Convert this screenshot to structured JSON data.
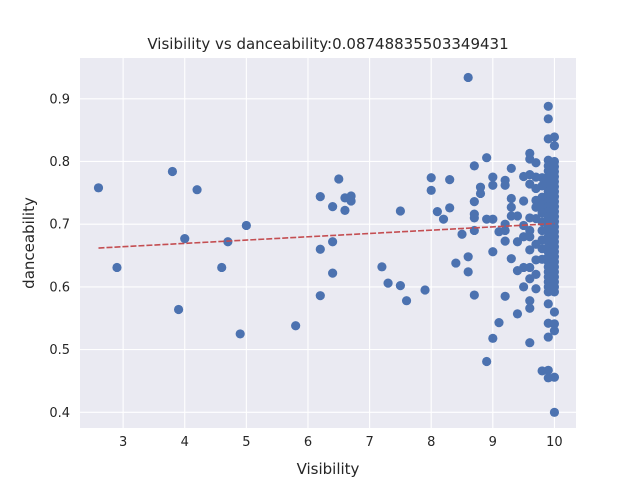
{
  "chart_data": {
    "type": "scatter",
    "title": "Visibility vs danceability:0.08748835503349431",
    "xlabel": "Visibility",
    "ylabel": "danceability",
    "xlim": [
      2.3,
      10.35
    ],
    "ylim": [
      0.375,
      0.965
    ],
    "xticks": [
      "3",
      "4",
      "5",
      "6",
      "7",
      "8",
      "9",
      "10"
    ],
    "yticks": [
      "0.4",
      "0.5",
      "0.6",
      "0.7",
      "0.8",
      "0.9"
    ],
    "grid": true,
    "background": "#eaeaf2",
    "point_color": "#4c72b0",
    "trend_color": "#c44e52",
    "trendline": {
      "x": [
        2.6,
        10.0
      ],
      "y": [
        0.662,
        0.701
      ]
    },
    "points": [
      [
        2.6,
        0.758
      ],
      [
        2.9,
        0.631
      ],
      [
        3.8,
        0.784
      ],
      [
        3.9,
        0.564
      ],
      [
        4.0,
        0.677
      ],
      [
        4.2,
        0.755
      ],
      [
        4.6,
        0.631
      ],
      [
        4.7,
        0.672
      ],
      [
        4.9,
        0.525
      ],
      [
        5.0,
        0.698
      ],
      [
        5.8,
        0.538
      ],
      [
        6.2,
        0.744
      ],
      [
        6.2,
        0.66
      ],
      [
        6.2,
        0.586
      ],
      [
        6.4,
        0.728
      ],
      [
        6.4,
        0.672
      ],
      [
        6.4,
        0.622
      ],
      [
        6.5,
        0.772
      ],
      [
        6.6,
        0.742
      ],
      [
        6.6,
        0.722
      ],
      [
        6.7,
        0.745
      ],
      [
        6.7,
        0.737
      ],
      [
        7.2,
        0.632
      ],
      [
        7.3,
        0.606
      ],
      [
        7.5,
        0.721
      ],
      [
        7.5,
        0.602
      ],
      [
        7.6,
        0.578
      ],
      [
        7.9,
        0.595
      ],
      [
        8.0,
        0.774
      ],
      [
        8.0,
        0.754
      ],
      [
        8.1,
        0.72
      ],
      [
        8.2,
        0.708
      ],
      [
        8.3,
        0.771
      ],
      [
        8.3,
        0.726
      ],
      [
        8.4,
        0.638
      ],
      [
        8.5,
        0.684
      ],
      [
        8.6,
        0.934
      ],
      [
        8.6,
        0.648
      ],
      [
        8.6,
        0.624
      ],
      [
        8.7,
        0.793
      ],
      [
        8.7,
        0.736
      ],
      [
        8.7,
        0.716
      ],
      [
        8.7,
        0.71
      ],
      [
        8.7,
        0.69
      ],
      [
        8.7,
        0.587
      ],
      [
        8.8,
        0.759
      ],
      [
        8.8,
        0.749
      ],
      [
        8.9,
        0.806
      ],
      [
        8.9,
        0.708
      ],
      [
        8.9,
        0.481
      ],
      [
        9.0,
        0.775
      ],
      [
        9.0,
        0.762
      ],
      [
        9.0,
        0.708
      ],
      [
        9.0,
        0.656
      ],
      [
        9.0,
        0.518
      ],
      [
        9.1,
        0.688
      ],
      [
        9.1,
        0.543
      ],
      [
        9.2,
        0.77
      ],
      [
        9.2,
        0.762
      ],
      [
        9.2,
        0.7
      ],
      [
        9.2,
        0.69
      ],
      [
        9.2,
        0.673
      ],
      [
        9.2,
        0.585
      ],
      [
        9.3,
        0.789
      ],
      [
        9.3,
        0.741
      ],
      [
        9.3,
        0.727
      ],
      [
        9.3,
        0.713
      ],
      [
        9.3,
        0.645
      ],
      [
        9.4,
        0.713
      ],
      [
        9.4,
        0.672
      ],
      [
        9.4,
        0.626
      ],
      [
        9.4,
        0.557
      ],
      [
        9.5,
        0.776
      ],
      [
        9.5,
        0.737
      ],
      [
        9.5,
        0.698
      ],
      [
        9.5,
        0.68
      ],
      [
        9.5,
        0.631
      ],
      [
        9.5,
        0.6
      ],
      [
        9.6,
        0.813
      ],
      [
        9.6,
        0.804
      ],
      [
        9.6,
        0.779
      ],
      [
        9.6,
        0.764
      ],
      [
        9.6,
        0.71
      ],
      [
        9.6,
        0.69
      ],
      [
        9.6,
        0.68
      ],
      [
        9.6,
        0.659
      ],
      [
        9.6,
        0.631
      ],
      [
        9.6,
        0.613
      ],
      [
        9.6,
        0.578
      ],
      [
        9.6,
        0.566
      ],
      [
        9.6,
        0.511
      ],
      [
        9.7,
        0.798
      ],
      [
        9.7,
        0.775
      ],
      [
        9.7,
        0.757
      ],
      [
        9.7,
        0.738
      ],
      [
        9.7,
        0.727
      ],
      [
        9.7,
        0.709
      ],
      [
        9.7,
        0.668
      ],
      [
        9.7,
        0.643
      ],
      [
        9.7,
        0.62
      ],
      [
        9.7,
        0.597
      ],
      [
        9.8,
        0.774
      ],
      [
        9.8,
        0.761
      ],
      [
        9.8,
        0.743
      ],
      [
        9.8,
        0.73
      ],
      [
        9.8,
        0.718
      ],
      [
        9.8,
        0.704
      ],
      [
        9.8,
        0.69
      ],
      [
        9.8,
        0.675
      ],
      [
        9.8,
        0.661
      ],
      [
        9.8,
        0.644
      ],
      [
        9.8,
        0.466
      ],
      [
        9.9,
        0.888
      ],
      [
        9.9,
        0.868
      ],
      [
        9.9,
        0.836
      ],
      [
        9.9,
        0.802
      ],
      [
        9.9,
        0.793
      ],
      [
        9.9,
        0.785
      ],
      [
        9.9,
        0.776
      ],
      [
        9.9,
        0.768
      ],
      [
        9.9,
        0.76
      ],
      [
        9.9,
        0.752
      ],
      [
        9.9,
        0.744
      ],
      [
        9.9,
        0.736
      ],
      [
        9.9,
        0.728
      ],
      [
        9.9,
        0.72
      ],
      [
        9.9,
        0.712
      ],
      [
        9.9,
        0.704
      ],
      [
        9.9,
        0.696
      ],
      [
        9.9,
        0.688
      ],
      [
        9.9,
        0.68
      ],
      [
        9.9,
        0.672
      ],
      [
        9.9,
        0.664
      ],
      [
        9.9,
        0.656
      ],
      [
        9.9,
        0.648
      ],
      [
        9.9,
        0.64
      ],
      [
        9.9,
        0.632
      ],
      [
        9.9,
        0.624
      ],
      [
        9.9,
        0.616
      ],
      [
        9.9,
        0.608
      ],
      [
        9.9,
        0.6
      ],
      [
        9.9,
        0.592
      ],
      [
        9.9,
        0.573
      ],
      [
        9.9,
        0.542
      ],
      [
        9.9,
        0.52
      ],
      [
        9.9,
        0.467
      ],
      [
        9.9,
        0.455
      ],
      [
        10.0,
        0.839
      ],
      [
        10.0,
        0.825
      ],
      [
        10.0,
        0.8
      ],
      [
        10.0,
        0.792
      ],
      [
        10.0,
        0.784
      ],
      [
        10.0,
        0.776
      ],
      [
        10.0,
        0.768
      ],
      [
        10.0,
        0.76
      ],
      [
        10.0,
        0.752
      ],
      [
        10.0,
        0.744
      ],
      [
        10.0,
        0.736
      ],
      [
        10.0,
        0.728
      ],
      [
        10.0,
        0.72
      ],
      [
        10.0,
        0.712
      ],
      [
        10.0,
        0.704
      ],
      [
        10.0,
        0.696
      ],
      [
        10.0,
        0.688
      ],
      [
        10.0,
        0.68
      ],
      [
        10.0,
        0.672
      ],
      [
        10.0,
        0.664
      ],
      [
        10.0,
        0.656
      ],
      [
        10.0,
        0.648
      ],
      [
        10.0,
        0.64
      ],
      [
        10.0,
        0.632
      ],
      [
        10.0,
        0.624
      ],
      [
        10.0,
        0.616
      ],
      [
        10.0,
        0.608
      ],
      [
        10.0,
        0.6
      ],
      [
        10.0,
        0.592
      ],
      [
        10.0,
        0.56
      ],
      [
        10.0,
        0.541
      ],
      [
        10.0,
        0.53
      ],
      [
        10.0,
        0.456
      ],
      [
        10.0,
        0.4
      ]
    ]
  }
}
